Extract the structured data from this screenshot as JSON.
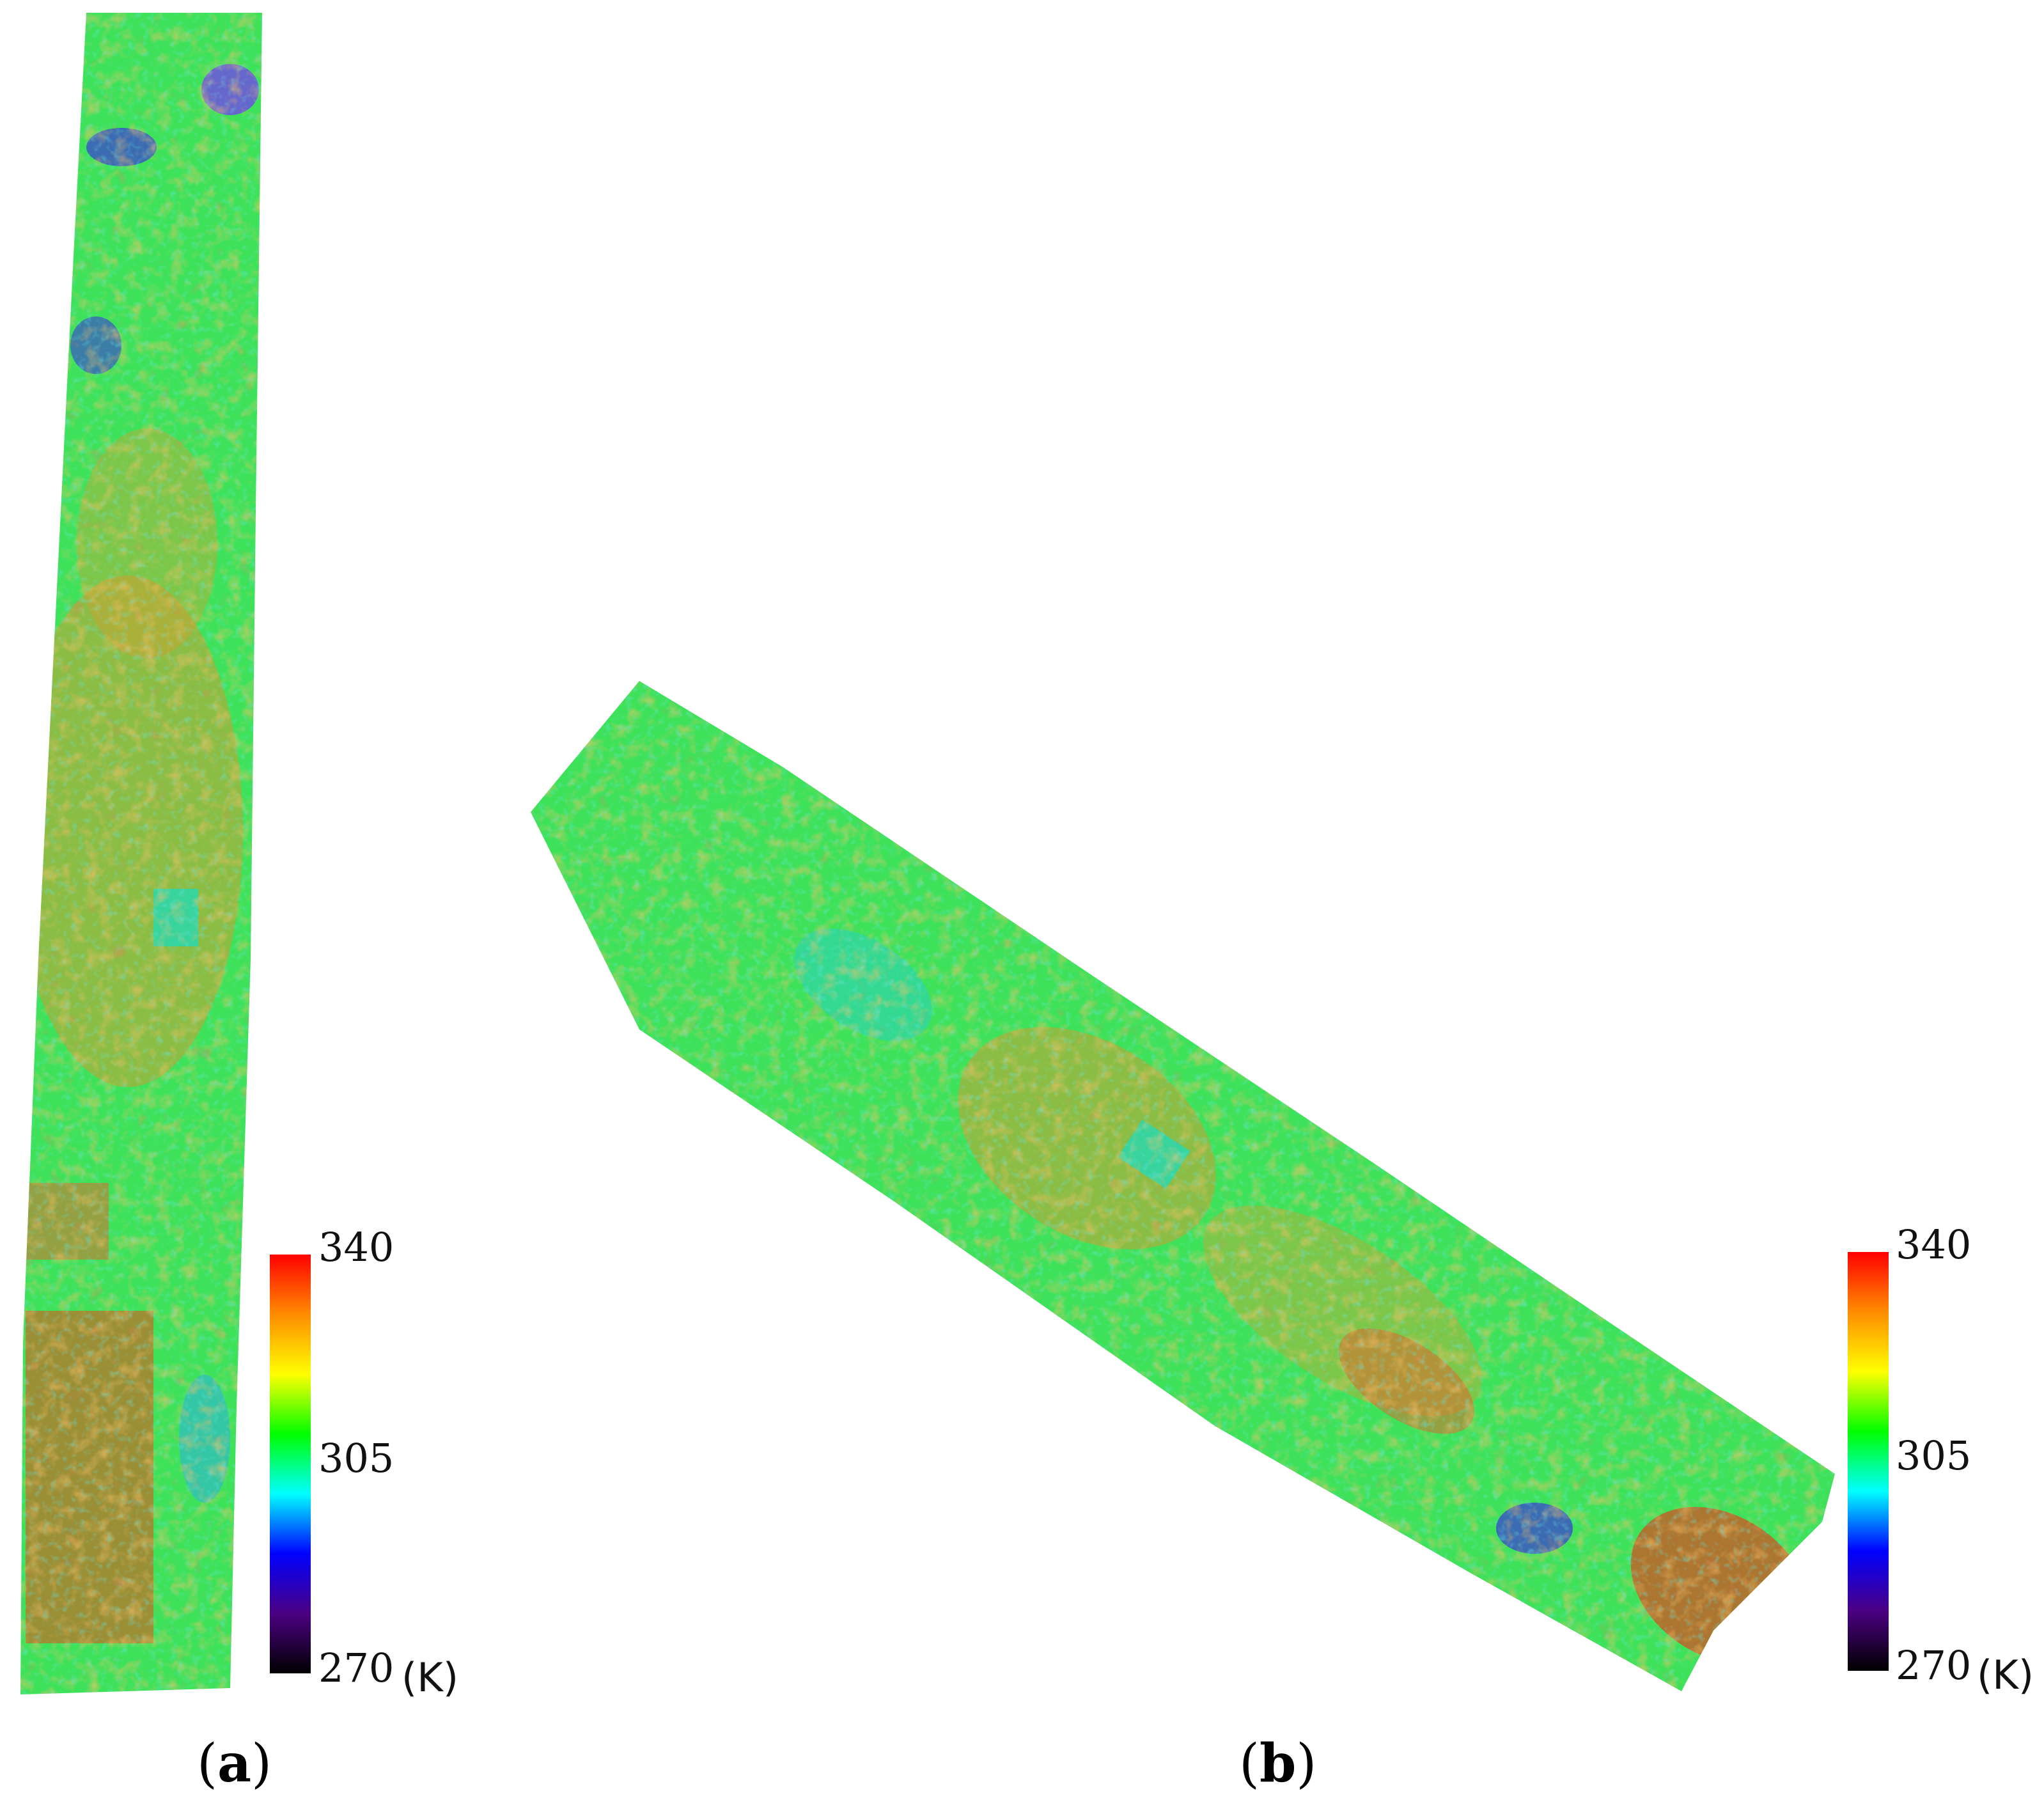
{
  "panels": [
    {
      "label_open": "(",
      "label_letter": "a",
      "label_close": ")"
    },
    {
      "label_open": "(",
      "label_letter": "b",
      "label_close": ")"
    }
  ],
  "colorbar": {
    "max_label": "340",
    "mid_label": "305",
    "min_label": "270",
    "unit_label": "(K)",
    "max_value": 340,
    "min_value": 270,
    "stops": [
      "#000000",
      "#4b0082",
      "#0000ff",
      "#00ffff",
      "#00ff00",
      "#ffff00",
      "#ff8c00",
      "#ff0000"
    ]
  },
  "colors": {
    "background": "#ffffff",
    "base_green": "#3ee25a",
    "warm_orange": "#e8902a",
    "hot_red": "#e83a1a",
    "cool_cyan": "#2fd6a8",
    "cold_blue": "#3a3ad8"
  }
}
